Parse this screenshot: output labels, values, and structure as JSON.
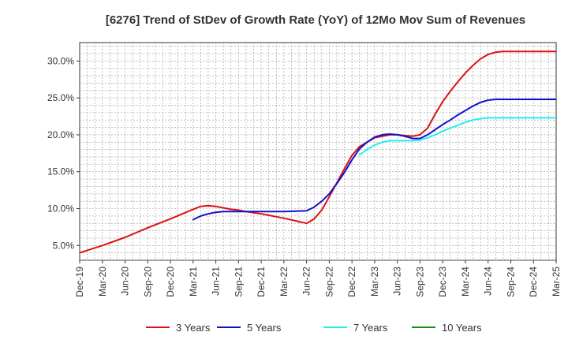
{
  "chart_data": {
    "type": "line",
    "title": "[6276]  Trend of StDev of Growth Rate (YoY) of 12Mo Mov Sum of Revenues",
    "xlabel": "",
    "ylabel": "",
    "x_ticks": [
      "Dec-19",
      "Mar-20",
      "Jun-20",
      "Sep-20",
      "Dec-20",
      "Mar-21",
      "Jun-21",
      "Sep-21",
      "Dec-21",
      "Mar-22",
      "Jun-22",
      "Sep-22",
      "Dec-22",
      "Mar-23",
      "Jun-23",
      "Sep-23",
      "Dec-23",
      "Mar-24",
      "Jun-24",
      "Sep-24",
      "Dec-24",
      "Mar-25"
    ],
    "y_ticks": [
      {
        "value": 5,
        "label": "5.0%"
      },
      {
        "value": 10,
        "label": "10.0%"
      },
      {
        "value": 15,
        "label": "15.0%"
      },
      {
        "value": 20,
        "label": "20.0%"
      },
      {
        "value": 25,
        "label": "25.0%"
      },
      {
        "value": 30,
        "label": "30.0%"
      }
    ],
    "x_range": [
      0,
      63
    ],
    "ylim": [
      3,
      32.5
    ],
    "grid": true,
    "legend_position": "bottom",
    "series": [
      {
        "name": "3 Years",
        "color": "#dd1111",
        "x": [
          0,
          3,
          6,
          9,
          12,
          15,
          16,
          17,
          18,
          19,
          20,
          21,
          22,
          24,
          27,
          30,
          31,
          32,
          33,
          34,
          35,
          36,
          37,
          39,
          41,
          42,
          43,
          44,
          45,
          46,
          47,
          48,
          49,
          50,
          51,
          52,
          53,
          54,
          55,
          56,
          57,
          58,
          60,
          62,
          64
        ],
        "values": [
          4.0,
          5.0,
          6.1,
          7.4,
          8.6,
          9.9,
          10.3,
          10.4,
          10.3,
          10.1,
          9.9,
          9.8,
          9.6,
          9.3,
          8.7,
          8.0,
          8.6,
          9.8,
          11.6,
          13.5,
          15.4,
          17.2,
          18.4,
          19.6,
          20.0,
          20.0,
          19.9,
          19.8,
          20.0,
          20.9,
          22.8,
          24.5,
          25.9,
          27.2,
          28.4,
          29.4,
          30.3,
          30.9,
          31.2,
          31.3,
          31.3,
          31.3,
          31.3,
          31.3,
          31.3
        ]
      },
      {
        "name": "5 Years",
        "color": "#1111cc",
        "x": [
          15,
          16,
          17,
          18,
          19,
          21,
          24,
          27,
          30,
          31,
          32,
          33,
          34,
          35,
          36,
          37,
          38,
          39,
          40,
          41,
          42,
          43,
          44,
          45,
          46,
          47,
          48,
          49,
          50,
          51,
          52,
          53,
          54,
          55,
          56,
          57,
          58,
          60,
          62,
          64
        ],
        "values": [
          8.5,
          9.0,
          9.3,
          9.5,
          9.6,
          9.6,
          9.6,
          9.6,
          9.7,
          10.2,
          11.0,
          12.0,
          13.4,
          14.9,
          16.6,
          18.1,
          19.0,
          19.7,
          20.0,
          20.1,
          20.0,
          19.8,
          19.5,
          19.5,
          20.0,
          20.7,
          21.4,
          22.0,
          22.7,
          23.3,
          23.9,
          24.4,
          24.7,
          24.8,
          24.8,
          24.8,
          24.8,
          24.8,
          24.8,
          24.8
        ]
      },
      {
        "name": "7 Years",
        "color": "#22eeee",
        "x": [
          37,
          38,
          39,
          40,
          41,
          42,
          43,
          44,
          45,
          46,
          47,
          48,
          49,
          50,
          51,
          52,
          53,
          54,
          55,
          56,
          57,
          58,
          60,
          62,
          64
        ],
        "values": [
          17.3,
          18.0,
          18.6,
          19.0,
          19.2,
          19.2,
          19.2,
          19.2,
          19.3,
          19.6,
          20.0,
          20.5,
          20.9,
          21.3,
          21.7,
          22.0,
          22.2,
          22.3,
          22.3,
          22.3,
          22.3,
          22.3,
          22.3,
          22.3,
          22.3
        ]
      },
      {
        "name": "10 Years",
        "color": "#1a8a1a",
        "x": [],
        "values": []
      }
    ]
  }
}
